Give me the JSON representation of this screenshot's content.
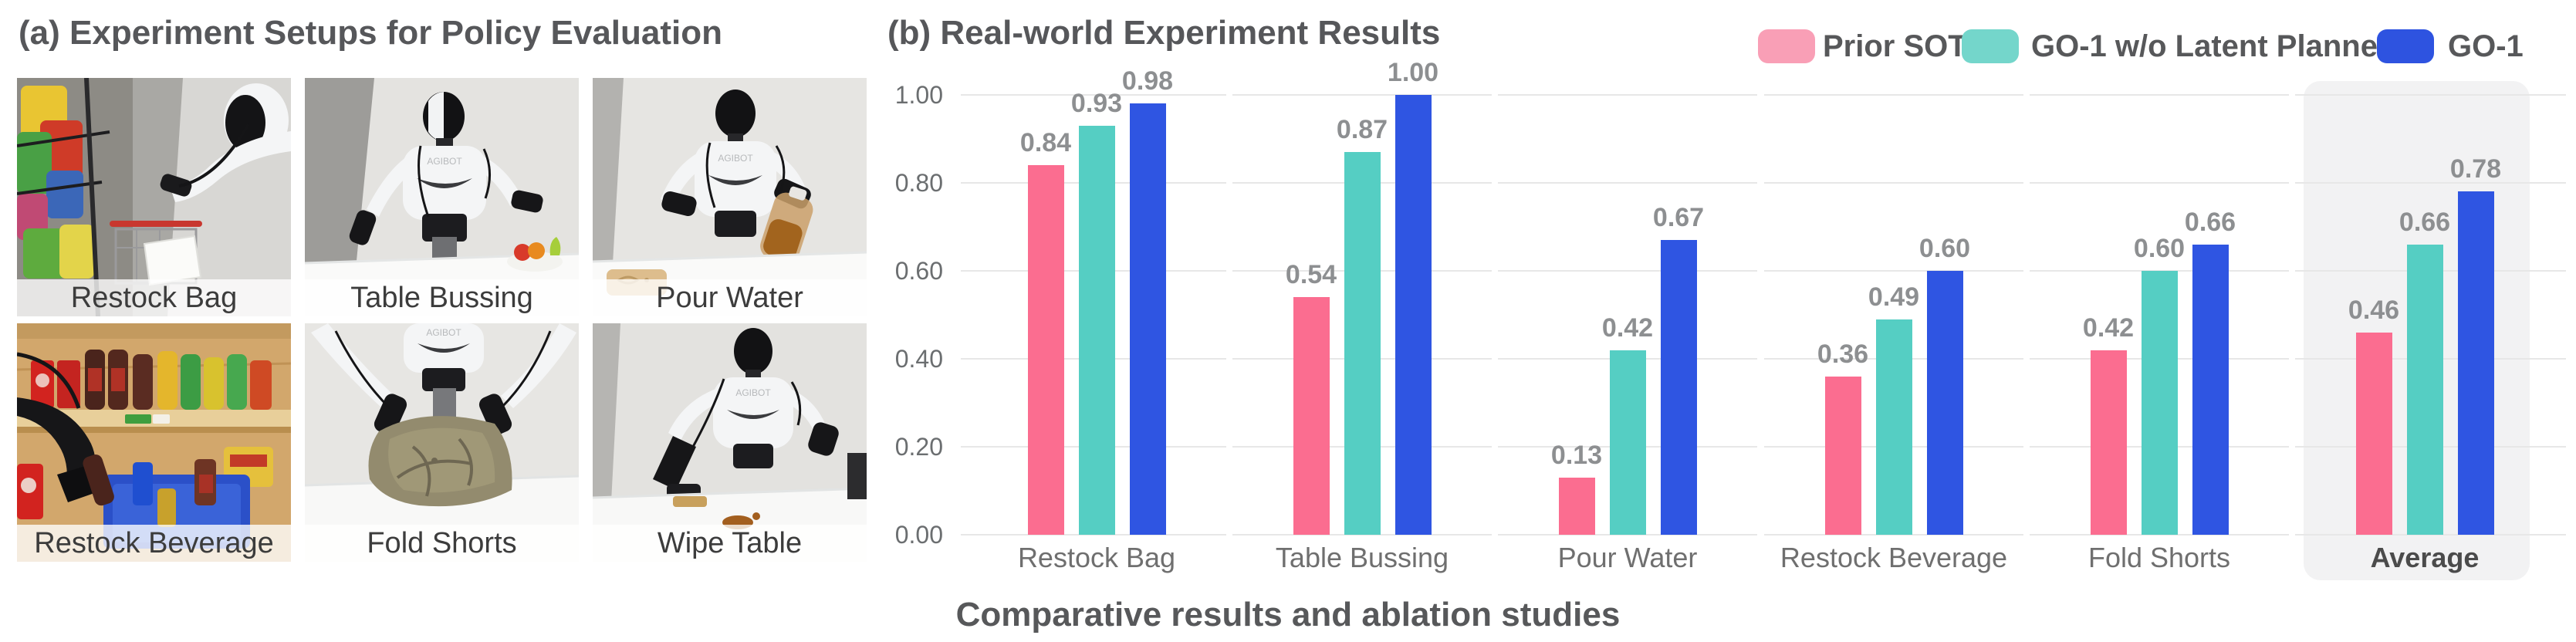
{
  "panel_a": {
    "title": "(a) Experiment Setups for Policy Evaluation",
    "photos": [
      {
        "label": "Restock Bag"
      },
      {
        "label": "Table Bussing"
      },
      {
        "label": "Pour Water"
      },
      {
        "label": "Restock Beverage"
      },
      {
        "label": "Fold Shorts"
      },
      {
        "label": "Wipe Table"
      }
    ]
  },
  "panel_b": {
    "title": "(b) Real-world Experiment Results",
    "caption": "Comparative results and ablation studies",
    "legend": [
      {
        "label": "Prior SOTA",
        "color": "#F99FB6"
      },
      {
        "label": "GO-1 w/o Latent Planner",
        "color": "#74D6CB"
      },
      {
        "label": "GO-1",
        "color": "#2E53E0"
      }
    ]
  },
  "chart_data": {
    "type": "bar",
    "title": "(b) Real-world Experiment Results",
    "categories": [
      "Restock Bag",
      "Table Bussing",
      "Pour Water",
      "Restock Beverage",
      "Fold Shorts",
      "Average"
    ],
    "series": [
      {
        "name": "Prior SOTA",
        "color": "#FB6D90",
        "values": [
          0.84,
          0.54,
          0.13,
          0.36,
          0.42,
          0.46
        ]
      },
      {
        "name": "GO-1 w/o Latent Planner",
        "color": "#55CEC3",
        "values": [
          0.93,
          0.87,
          0.42,
          0.49,
          0.6,
          0.66
        ]
      },
      {
        "name": "GO-1",
        "color": "#2F55E2",
        "values": [
          0.98,
          1.0,
          0.67,
          0.6,
          0.66,
          0.78
        ]
      }
    ],
    "ylim": [
      0.0,
      1.0
    ],
    "yticks": [
      "0.00",
      "0.20",
      "0.40",
      "0.60",
      "0.80",
      "1.00"
    ],
    "grid": true,
    "grid_style": "horizontal-segmented-per-category",
    "legend_position": "top-right",
    "highlight_category": "Average",
    "highlight_color": "#f2f2f3",
    "value_labels": true,
    "xlabel": "",
    "ylabel": ""
  }
}
